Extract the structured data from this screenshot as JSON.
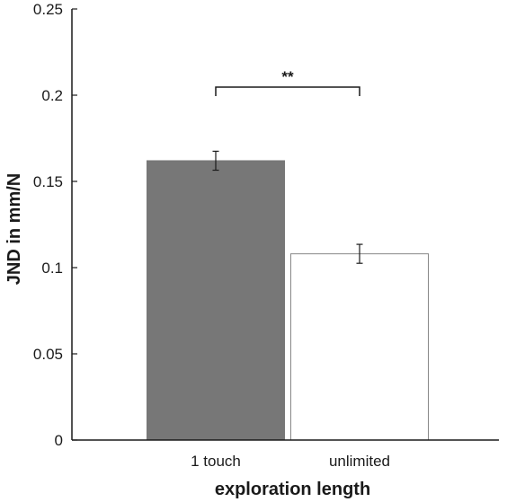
{
  "chart_data": {
    "type": "bar",
    "categories": [
      "1 touch",
      "unlimited"
    ],
    "values": [
      0.162,
      0.108
    ],
    "error": [
      0.0055,
      0.0055
    ],
    "bar_colors": [
      "#777777",
      "#ffffff"
    ],
    "bar_edge_colors": [
      "#777777",
      "#888888"
    ],
    "xlabel": "exploration length",
    "ylabel": "JND in mm/N",
    "ylim": [
      0,
      0.25
    ],
    "yticks": [
      0,
      0.05,
      0.1,
      0.15,
      0.2,
      0.25
    ],
    "ytick_labels": [
      "0",
      "0.05",
      "0.1",
      "0.15",
      "0.2",
      "0.25"
    ],
    "significance": {
      "between": [
        "1 touch",
        "unlimited"
      ],
      "label": "**"
    },
    "grid": false
  }
}
